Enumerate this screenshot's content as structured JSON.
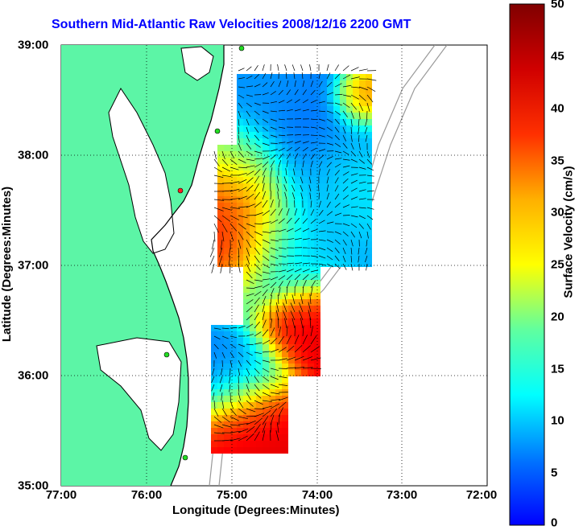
{
  "title": "Southern Mid-Atlantic Raw Velocities 2008/12/16 2200 GMT",
  "map": {
    "xlabel": "Longitude (Degrees:Minutes)",
    "ylabel": "Latitude (Degrees:Minutes)",
    "x_ticks": [
      "77:00",
      "76:00",
      "75:00",
      "74:00",
      "73:00",
      "72:00"
    ],
    "y_ticks": [
      "39:00",
      "38:00",
      "37:00",
      "36:00",
      "35:00"
    ],
    "lon_range": [
      -77,
      -72
    ],
    "lat_range": [
      35,
      39
    ],
    "land_color": "#5cf5a6",
    "grid": "dotted"
  },
  "colorbar": {
    "label": "Surface Velocity (cm/s)",
    "ticks": [
      "50",
      "45",
      "40",
      "35",
      "30",
      "25",
      "20",
      "15",
      "10",
      "5",
      "0"
    ],
    "range": [
      0,
      50
    ],
    "colormap": "jet"
  }
}
